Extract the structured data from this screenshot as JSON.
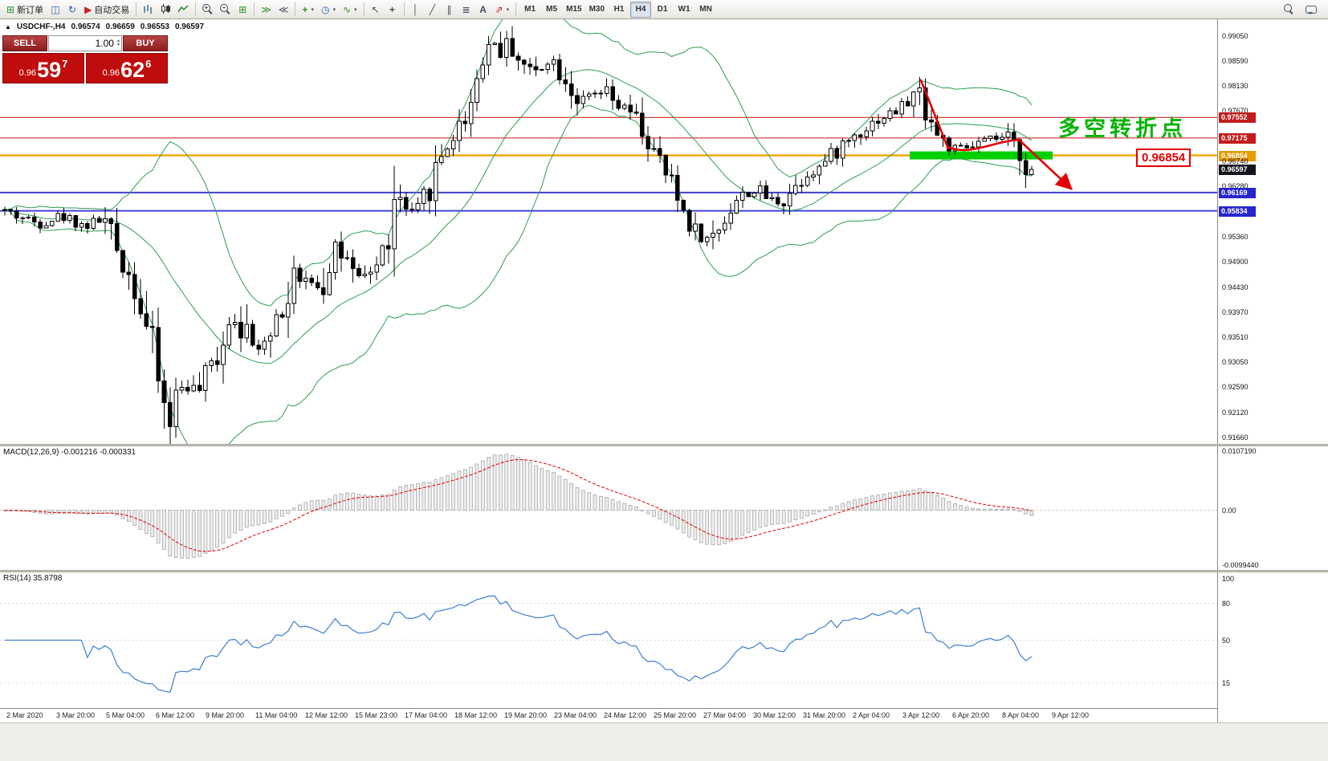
{
  "toolbar": {
    "new_order_label": "新订单",
    "auto_trading_label": "自动交易",
    "timeframes": [
      "M1",
      "M5",
      "M15",
      "M30",
      "H1",
      "H4",
      "D1",
      "W1",
      "MN"
    ],
    "active_timeframe": "H4"
  },
  "icons": {
    "triangle": "▲",
    "new_order": "⊞",
    "chart_window": "◫",
    "refresh": "↻",
    "auto_trading": "▶",
    "tile_windows": "⊞",
    "auto_scroll": "≫",
    "chart_shift": "≪",
    "new_chart": "+",
    "periods": "◷",
    "indicators": "∿",
    "cursor": "↖",
    "crosshair": "+",
    "vertical_line": "│",
    "trend_line": "╱",
    "channel": "∥",
    "fibonacci": "≣",
    "text_tool": "A",
    "arrows_tool": "⇗",
    "dropdown": "▾",
    "spin_up": "▴",
    "spin_down": "▾"
  },
  "title": {
    "symbol": "USDCHF-,H4",
    "open": "0.96574",
    "high": "0.96659",
    "low": "0.96553",
    "close": "0.96597"
  },
  "oct": {
    "sell_label": "SELL",
    "buy_label": "BUY",
    "volume": "1.00",
    "price_prefix": "0.96",
    "sell_big": "59",
    "sell_pip": "7",
    "buy_big": "62",
    "buy_pip": "6"
  },
  "axis": {
    "labels": [
      {
        "label": "0.99050",
        "type": "plain"
      },
      {
        "label": "0.98590",
        "type": "plain"
      },
      {
        "label": "0.98130",
        "type": "plain"
      },
      {
        "label": "0.97670",
        "type": "plain"
      },
      {
        "label": "0.97552",
        "type": "red"
      },
      {
        "label": "0.97175",
        "type": "red"
      },
      {
        "label": "0.96854",
        "type": "orange"
      },
      {
        "label": "0.96740",
        "type": "plain"
      },
      {
        "label": "0.96597",
        "type": "last"
      },
      {
        "label": "0.96280",
        "type": "plain"
      },
      {
        "label": "0.96169",
        "type": "blue"
      },
      {
        "label": "0.95834",
        "type": "blue"
      },
      {
        "label": "0.95360",
        "type": "plain"
      },
      {
        "label": "0.94900",
        "type": "plain"
      },
      {
        "label": "0.94430",
        "type": "plain"
      },
      {
        "label": "0.93970",
        "type": "plain"
      },
      {
        "label": "0.93510",
        "type": "plain"
      },
      {
        "label": "0.93050",
        "type": "plain"
      },
      {
        "label": "0.92590",
        "type": "plain"
      },
      {
        "label": "0.92120",
        "type": "plain"
      },
      {
        "label": "0.91660",
        "type": "plain"
      }
    ]
  },
  "hlines": [
    {
      "price": 0.97552,
      "color": "#d04040",
      "width": 1.3
    },
    {
      "price": 0.97175,
      "color": "#d04040",
      "width": 1.3
    },
    {
      "price": 0.96854,
      "color": "#f0a300",
      "width": 2.4
    },
    {
      "price": 0.96169,
      "color": "#3f3fd0",
      "width": 2
    },
    {
      "price": 0.95834,
      "color": "#4444dd",
      "width": 2
    }
  ],
  "annotations": {
    "turning_point_text": "多空转折点",
    "callout_text": "0.96854"
  },
  "macd": {
    "label": "MACD(12,26,9) -0.001216 -0.000331",
    "max": 0.010719,
    "min": -0.009944,
    "scale_labels": [
      "0.0107190",
      "0.00",
      "-0.0099440"
    ]
  },
  "rsi": {
    "label": "RSI(14) 35.8798",
    "levels": [
      100,
      80,
      50,
      15
    ]
  },
  "time_axis": {
    "dates": [
      "2 Mar 2020",
      "3 Mar 20:00",
      "5 Mar 04:00",
      "6 Mar 12:00",
      "9 Mar 20:00",
      "11 Mar 04:00",
      "12 Mar 12:00",
      "15 Mar 23:00",
      "17 Mar 04:00",
      "18 Mar 12:00",
      "19 Mar 20:00",
      "23 Mar 04:00",
      "24 Mar 12:00",
      "25 Mar 20:00",
      "27 Mar 04:00",
      "30 Mar 12:00",
      "31 Mar 20:00",
      "2 Apr 04:00",
      "3 Apr 12:00",
      "6 Apr 20:00",
      "8 Apr 04:00",
      "9 Apr 12:00"
    ]
  },
  "chart_data": {
    "type": "candlestick",
    "symbol": "USDCHF",
    "timeframe": "H4",
    "ohlc_current": {
      "open": 0.96574,
      "high": 0.96659,
      "low": 0.96553,
      "close": 0.96597
    },
    "price_top": 0.9905,
    "price_bottom": 0.9166,
    "count": 175,
    "seed": 42,
    "last_close": 0.96597,
    "levels": [
      0.97552,
      0.97175,
      0.96854,
      0.96169,
      0.95834
    ],
    "bollinger": {
      "period": 20,
      "deviation": 2
    },
    "anchors": [
      [
        0,
        0.9585
      ],
      [
        6,
        0.956
      ],
      [
        10,
        0.9575
      ],
      [
        14,
        0.9555
      ],
      [
        17,
        0.957
      ],
      [
        20,
        0.95
      ],
      [
        23,
        0.943
      ],
      [
        26,
        0.93
      ],
      [
        28,
        0.9185
      ],
      [
        29,
        0.924
      ],
      [
        31,
        0.927
      ],
      [
        33,
        0.9245
      ],
      [
        36,
        0.931
      ],
      [
        38,
        0.9375
      ],
      [
        40,
        0.9395
      ],
      [
        42,
        0.933
      ],
      [
        44,
        0.9345
      ],
      [
        46,
        0.939
      ],
      [
        48,
        0.9395
      ],
      [
        49,
        0.948
      ],
      [
        50,
        0.943
      ],
      [
        52,
        0.9465
      ],
      [
        54,
        0.944
      ],
      [
        56,
        0.953
      ],
      [
        58,
        0.949
      ],
      [
        60,
        0.9445
      ],
      [
        62,
        0.947
      ],
      [
        64,
        0.949
      ],
      [
        66,
        0.9555
      ],
      [
        67,
        0.961
      ],
      [
        69,
        0.957
      ],
      [
        71,
        0.959
      ],
      [
        73,
        0.965
      ],
      [
        75,
        0.97
      ],
      [
        77,
        0.973
      ],
      [
        79,
        0.977
      ],
      [
        81,
        0.986
      ],
      [
        83,
        0.99
      ],
      [
        85,
        0.987
      ],
      [
        86,
        0.9895
      ],
      [
        88,
        0.9855
      ],
      [
        90,
        0.9835
      ],
      [
        92,
        0.9865
      ],
      [
        94,
        0.9855
      ],
      [
        96,
        0.9815
      ],
      [
        98,
        0.978
      ],
      [
        100,
        0.9795
      ],
      [
        102,
        0.98
      ],
      [
        104,
        0.9775
      ],
      [
        106,
        0.977
      ],
      [
        108,
        0.974
      ],
      [
        110,
        0.9695
      ],
      [
        112,
        0.966
      ],
      [
        114,
        0.9615
      ],
      [
        116,
        0.957
      ],
      [
        118,
        0.9535
      ],
      [
        120,
        0.953
      ],
      [
        122,
        0.9565
      ],
      [
        124,
        0.96
      ],
      [
        126,
        0.9615
      ],
      [
        128,
        0.962
      ],
      [
        130,
        0.9605
      ],
      [
        132,
        0.96
      ],
      [
        134,
        0.9625
      ],
      [
        136,
        0.965
      ],
      [
        138,
        0.966
      ],
      [
        140,
        0.968
      ],
      [
        142,
        0.97
      ],
      [
        144,
        0.972
      ],
      [
        146,
        0.9735
      ],
      [
        148,
        0.975
      ],
      [
        150,
        0.976
      ],
      [
        152,
        0.977
      ],
      [
        154,
        0.979
      ],
      [
        155,
        0.9805
      ],
      [
        157,
        0.976
      ],
      [
        158,
        0.973
      ],
      [
        160,
        0.97
      ],
      [
        162,
        0.9695
      ],
      [
        164,
        0.97
      ],
      [
        166,
        0.971
      ],
      [
        168,
        0.9715
      ],
      [
        170,
        0.9718
      ],
      [
        172,
        0.97
      ],
      [
        174,
        0.966
      ]
    ]
  }
}
